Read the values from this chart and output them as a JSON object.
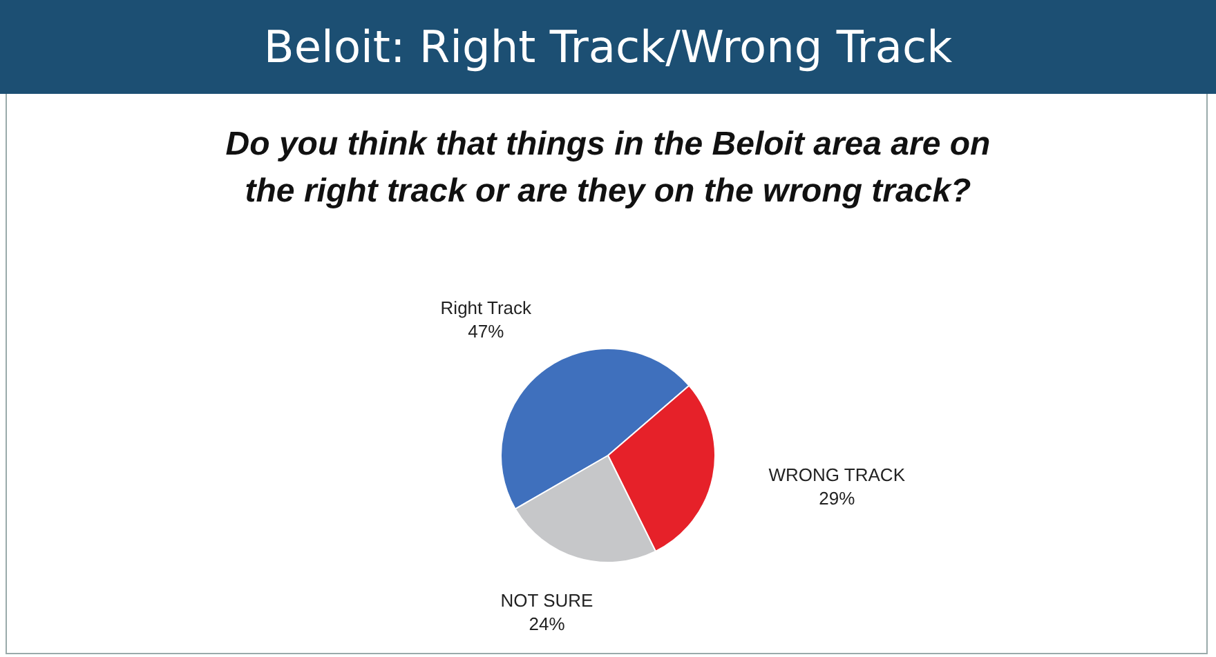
{
  "chart_data": {
    "type": "pie",
    "title": "Beloit: Right Track/Wrong Track",
    "subtitle": "Do you think that things in the Beloit area are on the right track or are they on the wrong track?",
    "categories": [
      "Right Track",
      "WRONG TRACK",
      "NOT SURE"
    ],
    "values": [
      47,
      29,
      24
    ],
    "colors": [
      "#3f70bd",
      "#e62129",
      "#c6c7c9"
    ],
    "value_labels": [
      "47%",
      "29%",
      "24%"
    ],
    "legend": false
  }
}
